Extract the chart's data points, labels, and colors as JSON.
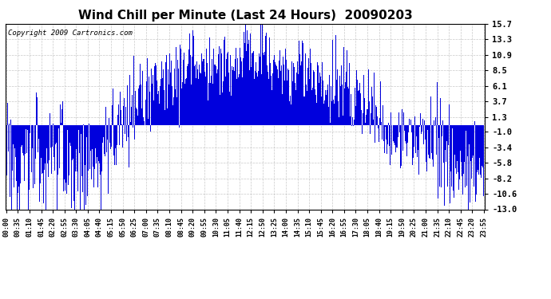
{
  "title": "Wind Chill per Minute (Last 24 Hours)  20090203",
  "copyright": "Copyright 2009 Cartronics.com",
  "yticks": [
    15.7,
    13.3,
    10.9,
    8.5,
    6.1,
    3.7,
    1.3,
    -1.0,
    -3.4,
    -5.8,
    -8.2,
    -10.6,
    -13.0
  ],
  "ymin": -13.0,
  "ymax": 15.7,
  "line_color": "#0000dd",
  "bg_color": "#ffffff",
  "plot_bg_color": "#ffffff",
  "grid_color": "#bbbbbb",
  "title_fontsize": 11,
  "xtick_labels": [
    "00:00",
    "00:35",
    "01:10",
    "01:45",
    "02:20",
    "02:55",
    "03:30",
    "04:05",
    "04:40",
    "05:15",
    "05:50",
    "06:25",
    "07:00",
    "07:35",
    "08:10",
    "08:45",
    "09:20",
    "09:55",
    "10:30",
    "11:05",
    "11:40",
    "12:15",
    "12:50",
    "13:25",
    "14:00",
    "14:35",
    "15:10",
    "15:45",
    "16:20",
    "16:55",
    "17:30",
    "18:05",
    "18:40",
    "19:15",
    "19:50",
    "20:25",
    "21:00",
    "21:35",
    "22:10",
    "22:45",
    "23:20",
    "23:55"
  ]
}
